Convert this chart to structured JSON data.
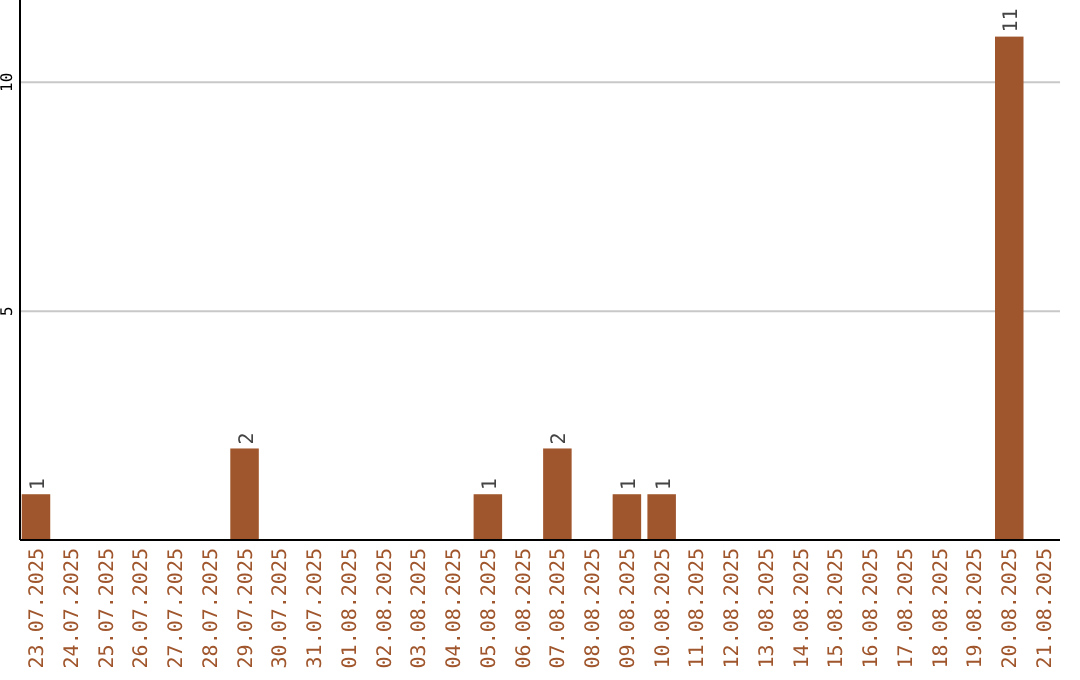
{
  "chart_data": {
    "type": "bar",
    "categories": [
      "23.07.2025",
      "24.07.2025",
      "25.07.2025",
      "26.07.2025",
      "27.07.2025",
      "28.07.2025",
      "29.07.2025",
      "30.07.2025",
      "31.07.2025",
      "01.08.2025",
      "02.08.2025",
      "03.08.2025",
      "04.08.2025",
      "05.08.2025",
      "06.08.2025",
      "07.08.2025",
      "08.08.2025",
      "09.08.2025",
      "10.08.2025",
      "11.08.2025",
      "12.08.2025",
      "13.08.2025",
      "14.08.2025",
      "15.08.2025",
      "16.08.2025",
      "17.08.2025",
      "18.08.2025",
      "19.08.2025",
      "20.08.2025",
      "21.08.2025"
    ],
    "values": [
      1,
      0,
      0,
      0,
      0,
      0,
      2,
      0,
      0,
      0,
      0,
      0,
      0,
      1,
      0,
      2,
      0,
      1,
      1,
      0,
      0,
      0,
      0,
      0,
      0,
      0,
      0,
      0,
      11,
      0
    ],
    "value_labels": [
      "1",
      null,
      null,
      null,
      null,
      null,
      "2",
      null,
      null,
      null,
      null,
      null,
      null,
      "1",
      null,
      "2",
      null,
      "1",
      "1",
      null,
      null,
      null,
      null,
      null,
      null,
      null,
      null,
      null,
      "11",
      null
    ],
    "color": "#a0562c",
    "ylim": [
      0,
      11.8
    ],
    "yticks": [
      5,
      10
    ],
    "grid": "y"
  }
}
